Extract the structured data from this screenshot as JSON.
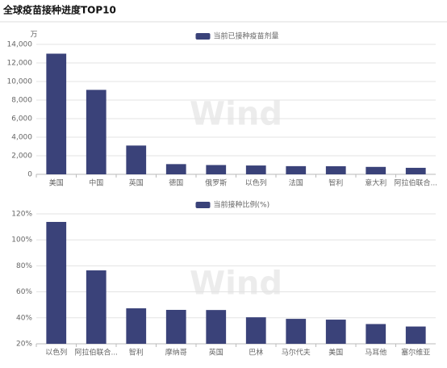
{
  "title": "全球疫苗接种进度TOP10",
  "watermark": "Wind",
  "chart_data": [
    {
      "type": "bar",
      "unit": "万",
      "categories": [
        "美国",
        "中国",
        "英国",
        "德国",
        "俄罗斯",
        "以色列",
        "法国",
        "智利",
        "意大利",
        "阿拉伯联合..."
      ],
      "series": [
        {
          "name": "当前已接种疫苗剂量",
          "color": "#3a4279",
          "values": [
            13000,
            9100,
            3100,
            1100,
            1000,
            950,
            880,
            870,
            800,
            700
          ]
        }
      ],
      "ylim": [
        0,
        14000
      ],
      "yticks": [
        0,
        {
          "value": 2000,
          "label": "2,000"
        },
        {
          "value": 4000,
          "label": "4,000"
        },
        {
          "value": 6000,
          "label": "6,000"
        },
        {
          "value": 8000,
          "label": "8,000"
        },
        {
          "value": 10000,
          "label": "10,000"
        },
        {
          "value": 12000,
          "label": "12,000"
        },
        {
          "value": 14000,
          "label": "14,000"
        }
      ],
      "grid": true
    },
    {
      "type": "bar",
      "categories": [
        "以色列",
        "阿拉伯联合...",
        "智利",
        "摩纳哥",
        "英国",
        "巴林",
        "马尔代夫",
        "美国",
        "马耳他",
        "塞尔维亚"
      ],
      "series": [
        {
          "name": "当前接种比例(%)",
          "color": "#3a4279",
          "values": [
            113.8,
            76.5,
            47.3,
            46.1,
            46,
            40.4,
            39.2,
            38.6,
            35.2,
            33.3
          ]
        }
      ],
      "ylim": [
        20,
        120
      ],
      "yticks": [
        {
          "value": 20,
          "label": "20%"
        },
        {
          "value": 40,
          "label": "40%"
        },
        {
          "value": 60,
          "label": "60%"
        },
        {
          "value": 80,
          "label": "80%"
        },
        {
          "value": 100,
          "label": "100%"
        },
        {
          "value": 120,
          "label": "120%"
        }
      ],
      "grid": true
    }
  ]
}
